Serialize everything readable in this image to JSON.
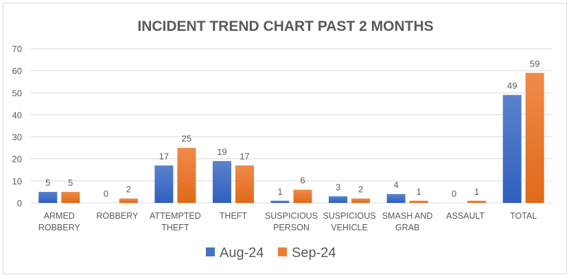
{
  "chart_data": {
    "type": "bar",
    "title": "INCIDENT TREND CHART PAST 2 MONTHS",
    "xlabel": "",
    "ylabel": "",
    "ylim": [
      0,
      70
    ],
    "yticks": [
      "0",
      "10",
      "20",
      "30",
      "40",
      "50",
      "60",
      "70"
    ],
    "grid": true,
    "legend_position": "bottom",
    "categories": [
      [
        "ARMED",
        "ROBBERY"
      ],
      [
        "ROBBERY"
      ],
      [
        "ATTEMPTED",
        "THEFT"
      ],
      [
        "THEFT"
      ],
      [
        "SUSPICIOUS",
        "PERSON"
      ],
      [
        "SUSPICIOUS",
        "VEHICLE"
      ],
      [
        "SMASH AND",
        "GRAB"
      ],
      [
        "ASSAULT"
      ],
      [
        "TOTAL"
      ]
    ],
    "series": [
      {
        "name": "Aug-24",
        "color": "#4472c4",
        "values": [
          5,
          0,
          17,
          19,
          1,
          3,
          4,
          0,
          49
        ]
      },
      {
        "name": "Sep-24",
        "color": "#ed7d31",
        "values": [
          5,
          2,
          25,
          17,
          6,
          2,
          1,
          1,
          59
        ]
      }
    ]
  }
}
